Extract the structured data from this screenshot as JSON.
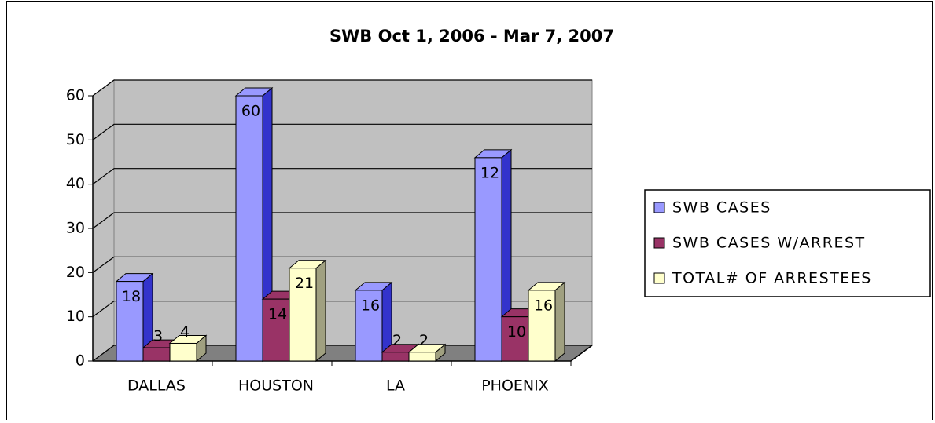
{
  "chart_data": {
    "type": "bar3d",
    "title": "SWB Oct 1, 2006 - Mar 7, 2007",
    "categories": [
      "DALLAS",
      "HOUSTON",
      "LA",
      "PHOENIX"
    ],
    "series": [
      {
        "name": "SWB CASES",
        "color": "#9999ff",
        "side": "#3333cc",
        "values": [
          18,
          60,
          16,
          46
        ]
      },
      {
        "name": "SWB CASES W/ARREST",
        "color": "#993366",
        "side": "#5a1a3a",
        "values": [
          3,
          14,
          2,
          10
        ]
      },
      {
        "name": "TOTAL# OF ARRESTEES",
        "color": "#ffffcc",
        "side": "#a0a080",
        "values": [
          4,
          21,
          2,
          16
        ]
      }
    ],
    "annotations": [
      {
        "text": "12"
      }
    ],
    "ylim": [
      0,
      60
    ],
    "yticks": [
      0,
      10,
      20,
      30,
      40,
      50,
      60
    ],
    "grid": true,
    "legend": "right"
  }
}
